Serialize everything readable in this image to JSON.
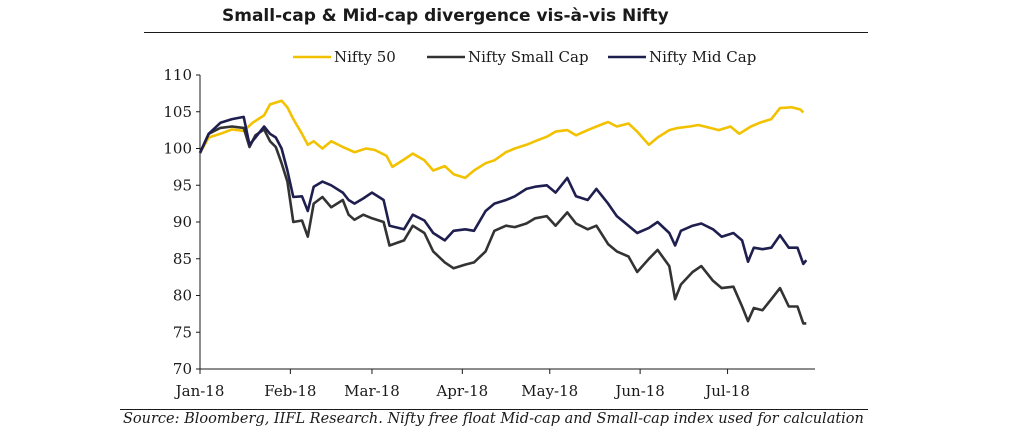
{
  "title": "Small-cap & Mid-cap divergence vis-à-vis Nifty",
  "source": "Source: Bloomberg, IIFL Research. Nifty free float Mid-cap and Small-cap index used for calculation",
  "chart_data": {
    "type": "line",
    "title": "Small-cap & Mid-cap divergence vis-à-vis Nifty",
    "xlabel": "",
    "ylabel": "",
    "ylim": [
      70,
      110
    ],
    "yticks": [
      "70",
      "75",
      "80",
      "85",
      "90",
      "95",
      "100",
      "105",
      "110"
    ],
    "xlim": [
      "2018-01-01",
      "2018-07-31"
    ],
    "xticks": [
      {
        "date": "2018-01-01",
        "label": "Jan-18"
      },
      {
        "date": "2018-02-01",
        "label": "Feb-18"
      },
      {
        "date": "2018-03-01",
        "label": "Mar-18"
      },
      {
        "date": "2018-04-01",
        "label": "Apr-18"
      },
      {
        "date": "2018-05-01",
        "label": "May-18"
      },
      {
        "date": "2018-06-01",
        "label": "Jun-18"
      },
      {
        "date": "2018-07-01",
        "label": "Jul-18"
      }
    ],
    "grid": false,
    "legend_position": "top",
    "series": [
      {
        "name": "Nifty 50",
        "color": "#f2c200",
        "points": [
          [
            "2018-01-01",
            99.4
          ],
          [
            "2018-01-04",
            101.5
          ],
          [
            "2018-01-08",
            102.0
          ],
          [
            "2018-01-12",
            102.6
          ],
          [
            "2018-01-16",
            102.4
          ],
          [
            "2018-01-19",
            103.5
          ],
          [
            "2018-01-23",
            104.5
          ],
          [
            "2018-01-25",
            106.0
          ],
          [
            "2018-01-29",
            106.5
          ],
          [
            "2018-01-31",
            105.6
          ],
          [
            "2018-02-02",
            104.0
          ],
          [
            "2018-02-05",
            102.0
          ],
          [
            "2018-02-07",
            100.5
          ],
          [
            "2018-02-09",
            101.0
          ],
          [
            "2018-02-12",
            100.0
          ],
          [
            "2018-02-15",
            101.0
          ],
          [
            "2018-02-19",
            100.2
          ],
          [
            "2018-02-23",
            99.5
          ],
          [
            "2018-02-27",
            100.0
          ],
          [
            "2018-03-02",
            99.8
          ],
          [
            "2018-03-06",
            99.0
          ],
          [
            "2018-03-08",
            97.5
          ],
          [
            "2018-03-12",
            98.5
          ],
          [
            "2018-03-15",
            99.3
          ],
          [
            "2018-03-19",
            98.4
          ],
          [
            "2018-03-22",
            97.0
          ],
          [
            "2018-03-26",
            97.6
          ],
          [
            "2018-03-29",
            96.5
          ],
          [
            "2018-04-02",
            96.0
          ],
          [
            "2018-04-05",
            97.0
          ],
          [
            "2018-04-09",
            98.0
          ],
          [
            "2018-04-12",
            98.4
          ],
          [
            "2018-04-16",
            99.5
          ],
          [
            "2018-04-19",
            100.0
          ],
          [
            "2018-04-23",
            100.5
          ],
          [
            "2018-04-26",
            101.0
          ],
          [
            "2018-04-30",
            101.6
          ],
          [
            "2018-05-03",
            102.3
          ],
          [
            "2018-05-07",
            102.5
          ],
          [
            "2018-05-10",
            101.8
          ],
          [
            "2018-05-14",
            102.5
          ],
          [
            "2018-05-17",
            103.0
          ],
          [
            "2018-05-21",
            103.6
          ],
          [
            "2018-05-24",
            103.0
          ],
          [
            "2018-05-28",
            103.4
          ],
          [
            "2018-05-31",
            102.3
          ],
          [
            "2018-06-04",
            100.5
          ],
          [
            "2018-06-07",
            101.5
          ],
          [
            "2018-06-11",
            102.5
          ],
          [
            "2018-06-14",
            102.8
          ],
          [
            "2018-06-18",
            103.0
          ],
          [
            "2018-06-21",
            103.2
          ],
          [
            "2018-06-25",
            102.8
          ],
          [
            "2018-06-28",
            102.5
          ],
          [
            "2018-07-02",
            103.0
          ],
          [
            "2018-07-05",
            102.0
          ],
          [
            "2018-07-09",
            103.0
          ],
          [
            "2018-07-12",
            103.5
          ],
          [
            "2018-07-16",
            104.0
          ],
          [
            "2018-07-19",
            105.5
          ],
          [
            "2018-07-23",
            105.6
          ],
          [
            "2018-07-26",
            105.3
          ],
          [
            "2018-07-27",
            104.9
          ]
        ]
      },
      {
        "name": "Nifty Small Cap",
        "color": "#333333",
        "points": [
          [
            "2018-01-01",
            99.4
          ],
          [
            "2018-01-04",
            102.0
          ],
          [
            "2018-01-08",
            102.8
          ],
          [
            "2018-01-12",
            103.0
          ],
          [
            "2018-01-16",
            102.8
          ],
          [
            "2018-01-18",
            100.2
          ],
          [
            "2018-01-20",
            101.8
          ],
          [
            "2018-01-23",
            102.6
          ],
          [
            "2018-01-25",
            101.0
          ],
          [
            "2018-01-27",
            100.2
          ],
          [
            "2018-01-29",
            98.0
          ],
          [
            "2018-01-31",
            95.5
          ],
          [
            "2018-02-02",
            90.0
          ],
          [
            "2018-02-05",
            90.2
          ],
          [
            "2018-02-07",
            88.0
          ],
          [
            "2018-02-09",
            92.5
          ],
          [
            "2018-02-12",
            93.4
          ],
          [
            "2018-02-15",
            92.0
          ],
          [
            "2018-02-19",
            93.0
          ],
          [
            "2018-02-21",
            91.0
          ],
          [
            "2018-02-23",
            90.3
          ],
          [
            "2018-02-26",
            91.0
          ],
          [
            "2018-03-01",
            90.5
          ],
          [
            "2018-03-05",
            90.0
          ],
          [
            "2018-03-07",
            86.8
          ],
          [
            "2018-03-12",
            87.5
          ],
          [
            "2018-03-15",
            89.5
          ],
          [
            "2018-03-19",
            88.5
          ],
          [
            "2018-03-22",
            86.0
          ],
          [
            "2018-03-26",
            84.5
          ],
          [
            "2018-03-29",
            83.7
          ],
          [
            "2018-04-02",
            84.2
          ],
          [
            "2018-04-05",
            84.5
          ],
          [
            "2018-04-09",
            86.0
          ],
          [
            "2018-04-12",
            88.8
          ],
          [
            "2018-04-16",
            89.5
          ],
          [
            "2018-04-19",
            89.3
          ],
          [
            "2018-04-23",
            89.8
          ],
          [
            "2018-04-26",
            90.5
          ],
          [
            "2018-04-30",
            90.8
          ],
          [
            "2018-05-03",
            89.5
          ],
          [
            "2018-05-07",
            91.3
          ],
          [
            "2018-05-10",
            89.8
          ],
          [
            "2018-05-14",
            89.0
          ],
          [
            "2018-05-17",
            89.5
          ],
          [
            "2018-05-21",
            87.0
          ],
          [
            "2018-05-24",
            86.0
          ],
          [
            "2018-05-28",
            85.3
          ],
          [
            "2018-05-31",
            83.2
          ],
          [
            "2018-06-04",
            85.0
          ],
          [
            "2018-06-07",
            86.2
          ],
          [
            "2018-06-11",
            84.0
          ],
          [
            "2018-06-13",
            79.5
          ],
          [
            "2018-06-15",
            81.5
          ],
          [
            "2018-06-19",
            83.2
          ],
          [
            "2018-06-22",
            84.0
          ],
          [
            "2018-06-26",
            82.0
          ],
          [
            "2018-06-29",
            81.0
          ],
          [
            "2018-07-03",
            81.2
          ],
          [
            "2018-07-06",
            78.5
          ],
          [
            "2018-07-08",
            76.5
          ],
          [
            "2018-07-10",
            78.3
          ],
          [
            "2018-07-13",
            78.0
          ],
          [
            "2018-07-16",
            79.5
          ],
          [
            "2018-07-19",
            81.0
          ],
          [
            "2018-07-22",
            78.5
          ],
          [
            "2018-07-25",
            78.5
          ],
          [
            "2018-07-27",
            76.2
          ],
          [
            "2018-07-28",
            76.2
          ]
        ]
      },
      {
        "name": "Nifty Mid Cap",
        "color": "#1f1f4f",
        "points": [
          [
            "2018-01-01",
            99.4
          ],
          [
            "2018-01-04",
            102.0
          ],
          [
            "2018-01-08",
            103.5
          ],
          [
            "2018-01-12",
            104.0
          ],
          [
            "2018-01-16",
            104.3
          ],
          [
            "2018-01-18",
            100.5
          ],
          [
            "2018-01-20",
            101.5
          ],
          [
            "2018-01-23",
            103.0
          ],
          [
            "2018-01-25",
            102.0
          ],
          [
            "2018-01-27",
            101.5
          ],
          [
            "2018-01-29",
            100.0
          ],
          [
            "2018-01-31",
            97.0
          ],
          [
            "2018-02-02",
            93.4
          ],
          [
            "2018-02-05",
            93.5
          ],
          [
            "2018-02-07",
            91.5
          ],
          [
            "2018-02-09",
            94.8
          ],
          [
            "2018-02-12",
            95.5
          ],
          [
            "2018-02-15",
            95.0
          ],
          [
            "2018-02-19",
            94.0
          ],
          [
            "2018-02-21",
            93.0
          ],
          [
            "2018-02-23",
            92.5
          ],
          [
            "2018-02-26",
            93.2
          ],
          [
            "2018-03-01",
            94.0
          ],
          [
            "2018-03-05",
            93.0
          ],
          [
            "2018-03-07",
            89.5
          ],
          [
            "2018-03-12",
            89.0
          ],
          [
            "2018-03-15",
            91.0
          ],
          [
            "2018-03-19",
            90.2
          ],
          [
            "2018-03-22",
            88.5
          ],
          [
            "2018-03-26",
            87.5
          ],
          [
            "2018-03-29",
            88.8
          ],
          [
            "2018-04-02",
            89.0
          ],
          [
            "2018-04-05",
            88.8
          ],
          [
            "2018-04-09",
            91.5
          ],
          [
            "2018-04-12",
            92.5
          ],
          [
            "2018-04-16",
            93.0
          ],
          [
            "2018-04-19",
            93.5
          ],
          [
            "2018-04-23",
            94.5
          ],
          [
            "2018-04-26",
            94.8
          ],
          [
            "2018-04-30",
            95.0
          ],
          [
            "2018-05-03",
            94.0
          ],
          [
            "2018-05-07",
            96.0
          ],
          [
            "2018-05-10",
            93.5
          ],
          [
            "2018-05-14",
            93.0
          ],
          [
            "2018-05-17",
            94.5
          ],
          [
            "2018-05-21",
            92.5
          ],
          [
            "2018-05-24",
            90.8
          ],
          [
            "2018-05-28",
            89.5
          ],
          [
            "2018-05-31",
            88.5
          ],
          [
            "2018-06-04",
            89.2
          ],
          [
            "2018-06-07",
            90.0
          ],
          [
            "2018-06-11",
            88.5
          ],
          [
            "2018-06-13",
            86.8
          ],
          [
            "2018-06-15",
            88.8
          ],
          [
            "2018-06-19",
            89.5
          ],
          [
            "2018-06-22",
            89.8
          ],
          [
            "2018-06-26",
            89.0
          ],
          [
            "2018-06-29",
            88.0
          ],
          [
            "2018-07-03",
            88.5
          ],
          [
            "2018-07-06",
            87.5
          ],
          [
            "2018-07-08",
            84.6
          ],
          [
            "2018-07-10",
            86.5
          ],
          [
            "2018-07-13",
            86.3
          ],
          [
            "2018-07-16",
            86.5
          ],
          [
            "2018-07-19",
            88.2
          ],
          [
            "2018-07-22",
            86.5
          ],
          [
            "2018-07-25",
            86.5
          ],
          [
            "2018-07-27",
            84.3
          ],
          [
            "2018-07-28",
            84.8
          ]
        ]
      }
    ]
  }
}
